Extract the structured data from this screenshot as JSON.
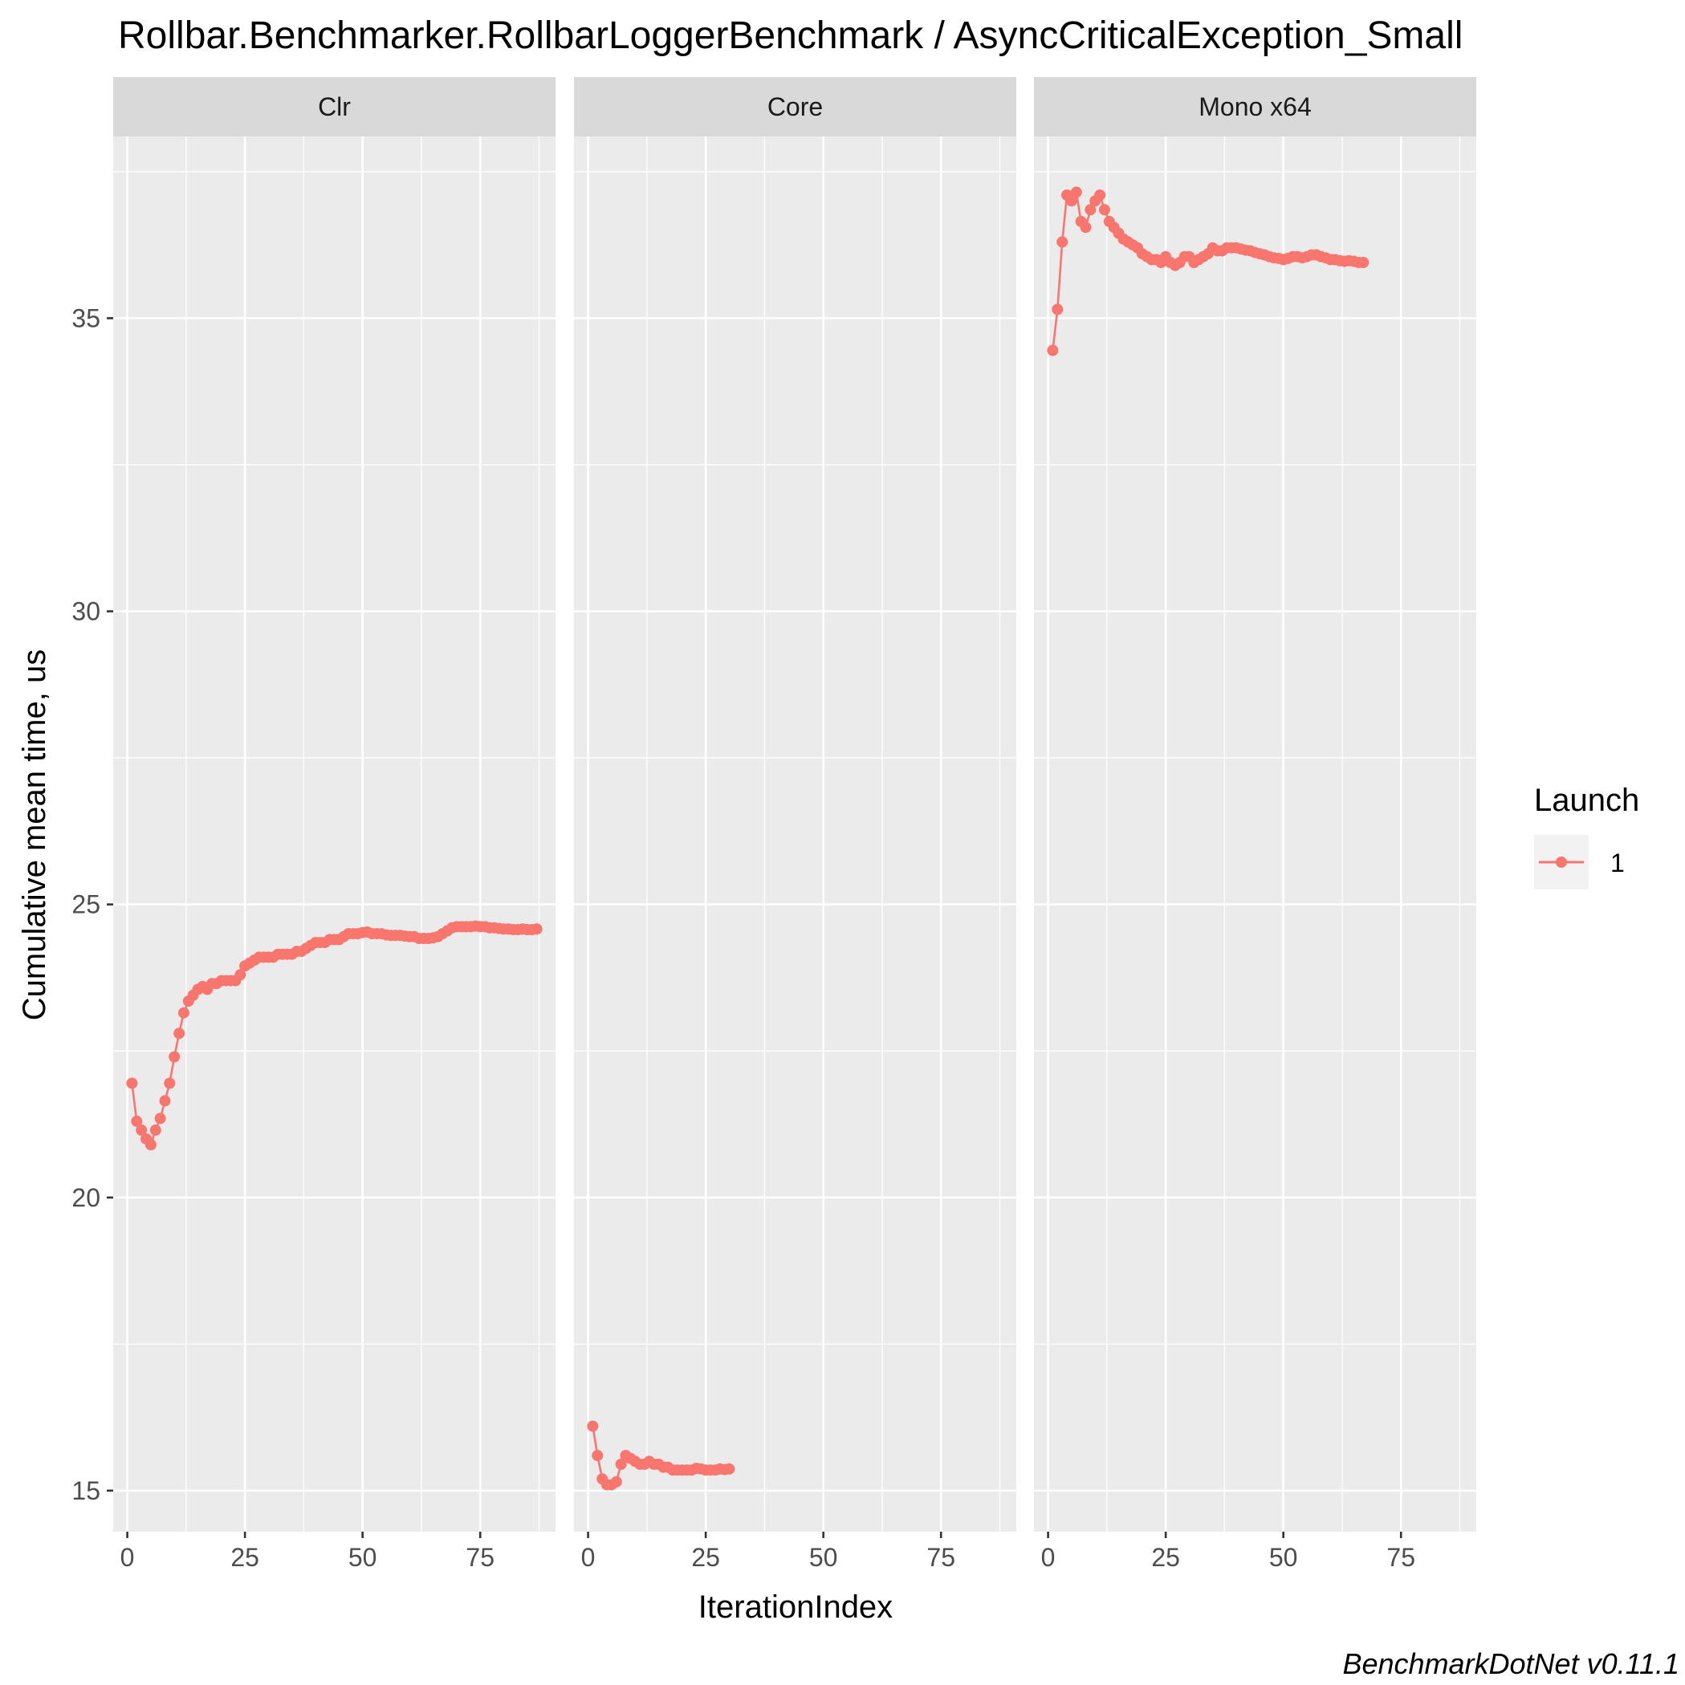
{
  "chart_data": {
    "type": "line",
    "title": "Rollbar.Benchmarker.RollbarLoggerBenchmark / AsyncCriticalException_Small",
    "xlabel": "IterationIndex",
    "ylabel": "Cumulative mean time, us",
    "caption": "BenchmarkDotNet v0.11.1",
    "xlim": [
      -3,
      91
    ],
    "ylim": [
      14.3,
      38.1
    ],
    "x_ticks": [
      0,
      25,
      50,
      75
    ],
    "x_tick_labels": [
      "0",
      "25",
      "50",
      "75"
    ],
    "y_ticks": [
      15,
      20,
      25,
      30,
      35
    ],
    "y_tick_labels": [
      "15",
      "20",
      "25",
      "30",
      "35"
    ],
    "grid": true,
    "legend": {
      "title": "Launch",
      "position": "right",
      "entries": [
        {
          "label": "1",
          "color": "#F8766D"
        }
      ]
    },
    "series_color": "#F8766D",
    "panels": [
      {
        "label": "Clr",
        "series": [
          {
            "name": "1",
            "x": [
              1,
              2,
              3,
              4,
              5,
              6,
              7,
              8,
              9,
              10,
              11,
              12,
              13,
              14,
              15,
              16,
              17,
              18,
              19,
              20,
              21,
              22,
              23,
              24,
              25,
              26,
              27,
              28,
              29,
              30,
              31,
              32,
              33,
              34,
              35,
              36,
              37,
              38,
              39,
              40,
              41,
              42,
              43,
              44,
              45,
              46,
              47,
              48,
              49,
              50,
              51,
              52,
              53,
              54,
              55,
              56,
              57,
              58,
              59,
              60,
              61,
              62,
              63,
              64,
              65,
              66,
              67,
              68,
              69,
              70,
              71,
              72,
              73,
              74,
              75,
              76,
              77,
              78,
              79,
              80,
              81,
              82,
              83,
              84,
              85,
              86,
              87
            ],
            "y": [
              21.95,
              21.3,
              21.15,
              21.0,
              20.9,
              21.15,
              21.35,
              21.65,
              21.95,
              22.4,
              22.8,
              23.15,
              23.35,
              23.45,
              23.55,
              23.6,
              23.55,
              23.65,
              23.65,
              23.7,
              23.7,
              23.7,
              23.7,
              23.8,
              23.95,
              24.0,
              24.05,
              24.1,
              24.1,
              24.1,
              24.1,
              24.15,
              24.15,
              24.15,
              24.15,
              24.2,
              24.2,
              24.25,
              24.3,
              24.35,
              24.35,
              24.35,
              24.4,
              24.4,
              24.4,
              24.45,
              24.5,
              24.5,
              24.5,
              24.52,
              24.53,
              24.5,
              24.5,
              24.5,
              24.48,
              24.47,
              24.47,
              24.47,
              24.46,
              24.45,
              24.45,
              24.42,
              24.42,
              24.42,
              24.43,
              24.45,
              24.5,
              24.55,
              24.6,
              24.62,
              24.62,
              24.62,
              24.62,
              24.63,
              24.62,
              24.62,
              24.6,
              24.6,
              24.59,
              24.58,
              24.58,
              24.57,
              24.57,
              24.58,
              24.57,
              24.57,
              24.58
            ]
          }
        ]
      },
      {
        "label": "Core",
        "series": [
          {
            "name": "1",
            "x": [
              1,
              2,
              3,
              4,
              5,
              6,
              7,
              8,
              9,
              10,
              11,
              12,
              13,
              14,
              15,
              16,
              17,
              18,
              19,
              20,
              21,
              22,
              23,
              24,
              25,
              26,
              27,
              28,
              29,
              30
            ],
            "y": [
              16.1,
              15.6,
              15.2,
              15.1,
              15.1,
              15.15,
              15.45,
              15.6,
              15.55,
              15.5,
              15.45,
              15.45,
              15.5,
              15.45,
              15.45,
              15.4,
              15.4,
              15.35,
              15.35,
              15.35,
              15.35,
              15.35,
              15.38,
              15.37,
              15.35,
              15.35,
              15.35,
              15.37,
              15.36,
              15.37
            ]
          }
        ]
      },
      {
        "label": "Mono x64",
        "series": [
          {
            "name": "1",
            "x": [
              1,
              2,
              3,
              4,
              5,
              6,
              7,
              8,
              9,
              10,
              11,
              12,
              13,
              14,
              15,
              16,
              17,
              18,
              19,
              20,
              21,
              22,
              23,
              24,
              25,
              26,
              27,
              28,
              29,
              30,
              31,
              32,
              33,
              34,
              35,
              36,
              37,
              38,
              39,
              40,
              41,
              42,
              43,
              44,
              45,
              46,
              47,
              48,
              49,
              50,
              51,
              52,
              53,
              54,
              55,
              56,
              57,
              58,
              59,
              60,
              61,
              62,
              63,
              64,
              65,
              66,
              67
            ],
            "y": [
              34.45,
              35.15,
              36.3,
              37.1,
              37.0,
              37.15,
              36.65,
              36.55,
              36.85,
              37.0,
              37.1,
              36.85,
              36.65,
              36.55,
              36.45,
              36.35,
              36.3,
              36.25,
              36.2,
              36.1,
              36.05,
              36.0,
              36.0,
              35.95,
              36.05,
              35.95,
              35.9,
              35.95,
              36.05,
              36.05,
              35.95,
              36.0,
              36.05,
              36.1,
              36.2,
              36.15,
              36.15,
              36.2,
              36.2,
              36.2,
              36.18,
              36.16,
              36.15,
              36.12,
              36.1,
              36.08,
              36.05,
              36.03,
              36.02,
              36.0,
              36.02,
              36.05,
              36.05,
              36.03,
              36.05,
              36.08,
              36.08,
              36.05,
              36.03,
              36.0,
              36.0,
              35.98,
              35.97,
              35.98,
              35.97,
              35.95,
              35.95
            ]
          }
        ]
      }
    ]
  }
}
